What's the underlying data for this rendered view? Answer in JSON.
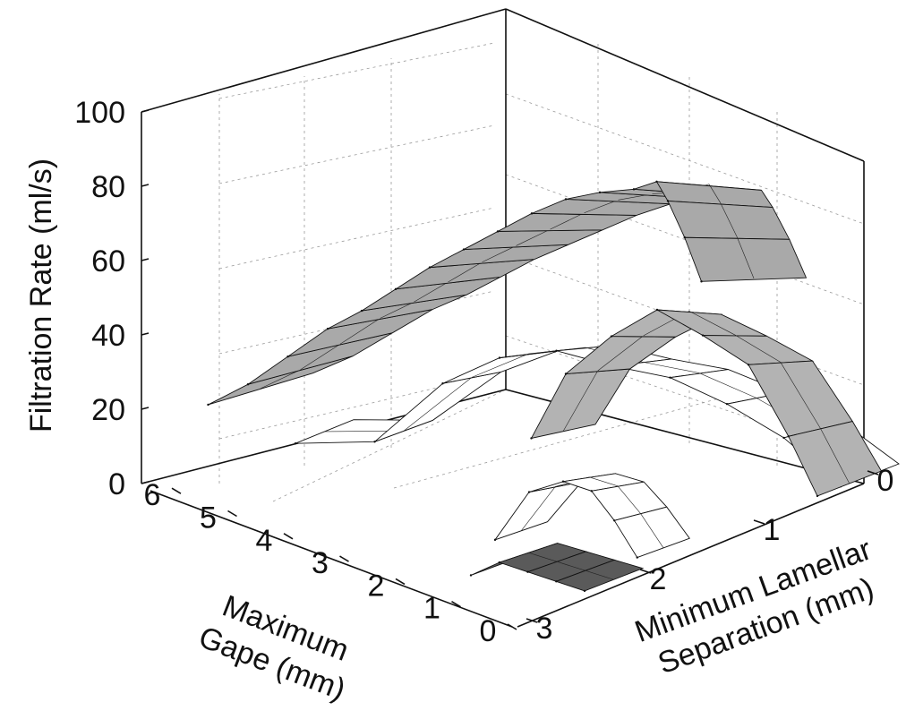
{
  "chart_data": {
    "type": "surface3d",
    "title": "",
    "zlabel": "Filtration Rate (ml/s)",
    "xlabel_lines": [
      "Maximum",
      "Gape (mm)"
    ],
    "ylabel_lines": [
      "Minimum Lamellar",
      "Separation (mm)"
    ],
    "z_ticks": [
      "0",
      "20",
      "40",
      "60",
      "80",
      "100"
    ],
    "x_ticks": [
      "0",
      "1",
      "2",
      "3",
      "4",
      "5",
      "6"
    ],
    "y_ticks": [
      "0",
      "1",
      "2",
      "3"
    ],
    "zlim": [
      0,
      100
    ],
    "xlim": [
      0,
      6.5
    ],
    "ylim": [
      0,
      3
    ],
    "grid": true,
    "series": [
      {
        "surface": "A",
        "color": "#a9a9a9",
        "points": [
          [
            6.0,
            0.25,
            20
          ],
          [
            5.6,
            0.4,
            26
          ],
          [
            5.2,
            0.55,
            34
          ],
          [
            4.8,
            0.7,
            42
          ],
          [
            4.4,
            0.8,
            48
          ],
          [
            4.0,
            0.9,
            55
          ],
          [
            3.6,
            1.0,
            62
          ],
          [
            3.2,
            1.1,
            68
          ],
          [
            2.8,
            1.2,
            74
          ],
          [
            2.4,
            1.3,
            80
          ],
          [
            2.0,
            1.4,
            85
          ],
          [
            1.6,
            1.5,
            88
          ],
          [
            1.2,
            1.6,
            90
          ],
          [
            1.0,
            1.7,
            92
          ],
          [
            0.8,
            1.7,
            88
          ],
          [
            0.5,
            1.7,
            80
          ],
          [
            0.2,
            1.7,
            70
          ]
        ]
      },
      {
        "surface": "B",
        "color": "#ffffff",
        "points": [
          [
            6.0,
            1.0,
            0
          ],
          [
            5.0,
            1.2,
            4
          ],
          [
            4.2,
            1.4,
            22
          ],
          [
            3.6,
            1.6,
            30
          ],
          [
            3.0,
            1.8,
            33
          ],
          [
            2.4,
            2.0,
            30
          ],
          [
            1.8,
            2.2,
            28
          ],
          [
            1.2,
            2.4,
            22
          ],
          [
            0.6,
            2.6,
            14
          ],
          [
            0.0,
            2.8,
            2
          ]
        ]
      },
      {
        "surface": "C",
        "color": "#b3b3b3",
        "points": [
          [
            2.2,
            1.2,
            22
          ],
          [
            2.0,
            1.4,
            38
          ],
          [
            1.6,
            1.6,
            48
          ],
          [
            1.2,
            1.8,
            55
          ],
          [
            0.8,
            2.0,
            48
          ],
          [
            0.4,
            2.2,
            40
          ],
          [
            0.1,
            2.4,
            20
          ],
          [
            0.0,
            2.6,
            2
          ]
        ]
      },
      {
        "surface": "D",
        "color": "#ffffff",
        "points": [
          [
            1.6,
            0.6,
            6
          ],
          [
            1.2,
            0.7,
            20
          ],
          [
            0.8,
            0.8,
            24
          ],
          [
            0.5,
            0.9,
            22
          ],
          [
            0.3,
            1.0,
            14
          ],
          [
            0.1,
            1.1,
            4
          ]
        ]
      },
      {
        "surface": "E",
        "color": "#5a5a5a",
        "points": [
          [
            1.2,
            0.2,
            4
          ],
          [
            0.9,
            0.3,
            8
          ],
          [
            0.6,
            0.4,
            6
          ],
          [
            0.3,
            0.5,
            4
          ],
          [
            0.0,
            0.6,
            2
          ]
        ]
      }
    ]
  }
}
